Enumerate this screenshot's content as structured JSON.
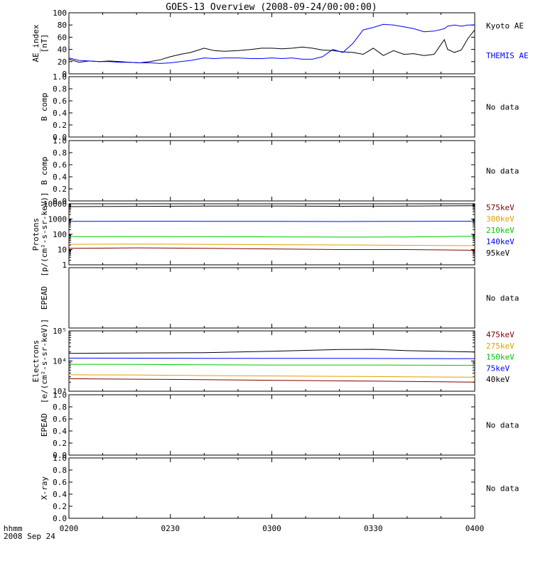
{
  "title": "GOES-13 Overview (2008-09-24/00:00:00)",
  "colors": {
    "black": "#000000",
    "blue": "#0000ff",
    "green": "#00c800",
    "orange": "#e0a000",
    "darkred": "#800000"
  },
  "time_axis": {
    "tick_labels": [
      "0200",
      "0230",
      "0300",
      "0330",
      "0400"
    ],
    "label_line1": "hhmm",
    "label_line2": "2008 Sep 24"
  },
  "chart_data": [
    {
      "type": "line",
      "name": "ae",
      "ylabel": [
        "AE_index",
        "[nT]"
      ],
      "scale": "linear",
      "ylim": [
        0,
        100
      ],
      "ticks": [
        0,
        20,
        40,
        60,
        80,
        100
      ],
      "tick_labels": [
        "0",
        "20",
        "40",
        "60",
        "80",
        "100"
      ],
      "series": [
        {
          "name": "Kyoto AE",
          "color": "#000000",
          "x": [
            0,
            3,
            6,
            9,
            12,
            15,
            18,
            21,
            24,
            27,
            30,
            33,
            36,
            40,
            43,
            46,
            50,
            54,
            57,
            60,
            63,
            66,
            69,
            72,
            75,
            78,
            81,
            84,
            87,
            90,
            93,
            96,
            99,
            102,
            105,
            108,
            111,
            112,
            114,
            116,
            118,
            120
          ],
          "y": [
            24,
            19,
            21,
            20,
            21,
            20,
            19,
            18,
            20,
            23,
            28,
            32,
            35,
            42,
            38,
            37,
            38,
            40,
            42,
            42,
            41,
            42,
            44,
            42,
            39,
            38,
            36,
            35,
            32,
            42,
            30,
            38,
            32,
            33,
            30,
            32,
            56,
            40,
            35,
            39,
            58,
            72
          ]
        },
        {
          "name": "THEMIS AE",
          "color": "#0000ff",
          "x": [
            0,
            3,
            6,
            9,
            12,
            15,
            18,
            21,
            24,
            27,
            30,
            33,
            36,
            40,
            43,
            46,
            50,
            54,
            57,
            60,
            63,
            66,
            69,
            72,
            75,
            78,
            81,
            84,
            87,
            90,
            93,
            96,
            99,
            102,
            105,
            108,
            111,
            112,
            114,
            116,
            118,
            120
          ],
          "y": [
            26,
            22,
            21,
            20,
            20,
            19,
            19,
            18,
            18,
            17,
            18,
            20,
            22,
            26,
            25,
            26,
            26,
            25,
            25,
            26,
            25,
            26,
            24,
            24,
            28,
            40,
            35,
            50,
            72,
            76,
            81,
            80,
            77,
            74,
            69,
            70,
            74,
            78,
            80,
            78,
            80,
            80
          ]
        }
      ],
      "labels": [
        {
          "text": "Kyoto AE",
          "color": "#000000"
        },
        {
          "text": "THEMIS AE",
          "color": "#0000ff"
        }
      ]
    },
    {
      "type": "line",
      "name": "bcomp1",
      "ylabel": [
        "B comp"
      ],
      "scale": "linear",
      "ylim": [
        0,
        1
      ],
      "ticks": [
        0,
        0.2,
        0.4,
        0.6,
        0.8,
        1
      ],
      "tick_labels": [
        "0.0",
        "0.2",
        "0.4",
        "0.6",
        "0.8",
        "1.0"
      ],
      "series": [],
      "labels": [
        {
          "text": "No data",
          "color": "#000000"
        }
      ]
    },
    {
      "type": "line",
      "name": "bcomp2",
      "ylabel": [
        "B comp"
      ],
      "scale": "linear",
      "ylim": [
        0,
        1
      ],
      "ticks": [
        0,
        0.2,
        0.4,
        0.6,
        0.8,
        1
      ],
      "tick_labels": [
        "0.0",
        "0.2",
        "0.4",
        "0.6",
        "0.8",
        "1.0"
      ],
      "series": [],
      "labels": [
        {
          "text": "No data",
          "color": "#000000"
        }
      ]
    },
    {
      "type": "line",
      "name": "protons",
      "ylabel": [
        "Protons",
        "[p/(cm²-s-sr-keV)]"
      ],
      "scale": "log",
      "ylim": [
        1,
        10000
      ],
      "ticks": [
        1,
        10,
        100,
        1000,
        10000
      ],
      "tick_labels": [
        "1",
        "10",
        "100",
        "1000",
        "10000"
      ],
      "series": [
        {
          "name": "575keV",
          "color": "#800000",
          "x": [
            0,
            20,
            40,
            60,
            80,
            100,
            120
          ],
          "y": [
            12,
            13,
            12,
            11,
            10,
            10,
            9
          ]
        },
        {
          "name": "300keV",
          "color": "#e0a000",
          "x": [
            0,
            20,
            40,
            60,
            80,
            100,
            120
          ],
          "y": [
            22,
            23,
            22,
            21,
            20,
            19,
            18
          ]
        },
        {
          "name": "210keV",
          "color": "#00c800",
          "x": [
            0,
            20,
            40,
            60,
            80,
            100,
            120
          ],
          "y": [
            70,
            72,
            70,
            68,
            66,
            67,
            75
          ]
        },
        {
          "name": "140keV",
          "color": "#0000ff",
          "x": [
            0,
            20,
            40,
            60,
            80,
            100,
            120
          ],
          "y": [
            700,
            720,
            710,
            700,
            690,
            700,
            720
          ]
        },
        {
          "name": "95keV",
          "color": "#000000",
          "x": [
            0,
            20,
            40,
            60,
            80,
            100,
            120
          ],
          "y": [
            6500,
            6800,
            7000,
            7200,
            6900,
            7100,
            7500
          ]
        }
      ],
      "labels": [
        {
          "text": "575keV",
          "color": "#800000"
        },
        {
          "text": "300keV",
          "color": "#e0a000"
        },
        {
          "text": "210keV",
          "color": "#00c800"
        },
        {
          "text": "140keV",
          "color": "#0000ff"
        },
        {
          "text": "95keV",
          "color": "#000000"
        }
      ]
    },
    {
      "type": "line",
      "name": "epead1",
      "ylabel": [
        "EPEAD"
      ],
      "scale": "linear",
      "ylim": [
        0,
        1
      ],
      "ticks": [],
      "tick_labels": [],
      "series": [],
      "labels": [
        {
          "text": "No data",
          "color": "#000000"
        }
      ]
    },
    {
      "type": "line",
      "name": "electrons",
      "ylabel": [
        "Electrons",
        "[e/(cm²-s-sr-keV)]"
      ],
      "scale": "log",
      "ylim": [
        1000,
        100000
      ],
      "ticks": [
        1000,
        10000,
        100000
      ],
      "tick_labels": [
        "10³",
        "10⁴",
        "10⁵"
      ],
      "series": [
        {
          "name": "475keV",
          "color": "#800000",
          "x": [
            0,
            20,
            40,
            60,
            80,
            100,
            120
          ],
          "y": [
            2600,
            2500,
            2400,
            2300,
            2200,
            2100,
            2000
          ]
        },
        {
          "name": "275keV",
          "color": "#e0a000",
          "x": [
            0,
            20,
            40,
            60,
            80,
            100,
            120
          ],
          "y": [
            3500,
            3450,
            3300,
            3200,
            3100,
            3000,
            2900
          ]
        },
        {
          "name": "150keV",
          "color": "#00c800",
          "x": [
            0,
            20,
            40,
            60,
            80,
            100,
            120
          ],
          "y": [
            7800,
            7700,
            7500,
            7400,
            7400,
            7300,
            7200
          ]
        },
        {
          "name": "75keV",
          "color": "#0000ff",
          "x": [
            0,
            20,
            40,
            60,
            80,
            100,
            120
          ],
          "y": [
            12500,
            12400,
            12300,
            12200,
            12300,
            12100,
            12000
          ]
        },
        {
          "name": "40keV",
          "color": "#000000",
          "x": [
            0,
            20,
            40,
            60,
            80,
            90,
            100,
            120
          ],
          "y": [
            18000,
            18500,
            19000,
            21000,
            24000,
            24500,
            22000,
            20000
          ]
        }
      ],
      "labels": [
        {
          "text": "475keV",
          "color": "#800000"
        },
        {
          "text": "275keV",
          "color": "#e0a000"
        },
        {
          "text": "150keV",
          "color": "#00c800"
        },
        {
          "text": "75keV",
          "color": "#0000ff"
        },
        {
          "text": "40keV",
          "color": "#000000"
        }
      ]
    },
    {
      "type": "line",
      "name": "epead2",
      "ylabel": [
        "EPEAD"
      ],
      "scale": "linear",
      "ylim": [
        0,
        1
      ],
      "ticks": [
        0,
        0.2,
        0.4,
        0.6,
        0.8,
        1
      ],
      "tick_labels": [
        "0.0",
        "0.2",
        "0.4",
        "0.6",
        "0.8",
        "1.0"
      ],
      "series": [],
      "labels": [
        {
          "text": "No data",
          "color": "#000000"
        }
      ]
    },
    {
      "type": "line",
      "name": "xray",
      "ylabel": [
        "X-ray"
      ],
      "scale": "linear",
      "ylim": [
        0,
        1
      ],
      "ticks": [
        0,
        0.2,
        0.4,
        0.6,
        0.8,
        1
      ],
      "tick_labels": [
        "0.0",
        "0.2",
        "0.4",
        "0.6",
        "0.8",
        "1.0"
      ],
      "series": [],
      "labels": [
        {
          "text": "No data",
          "color": "#000000"
        }
      ]
    }
  ]
}
